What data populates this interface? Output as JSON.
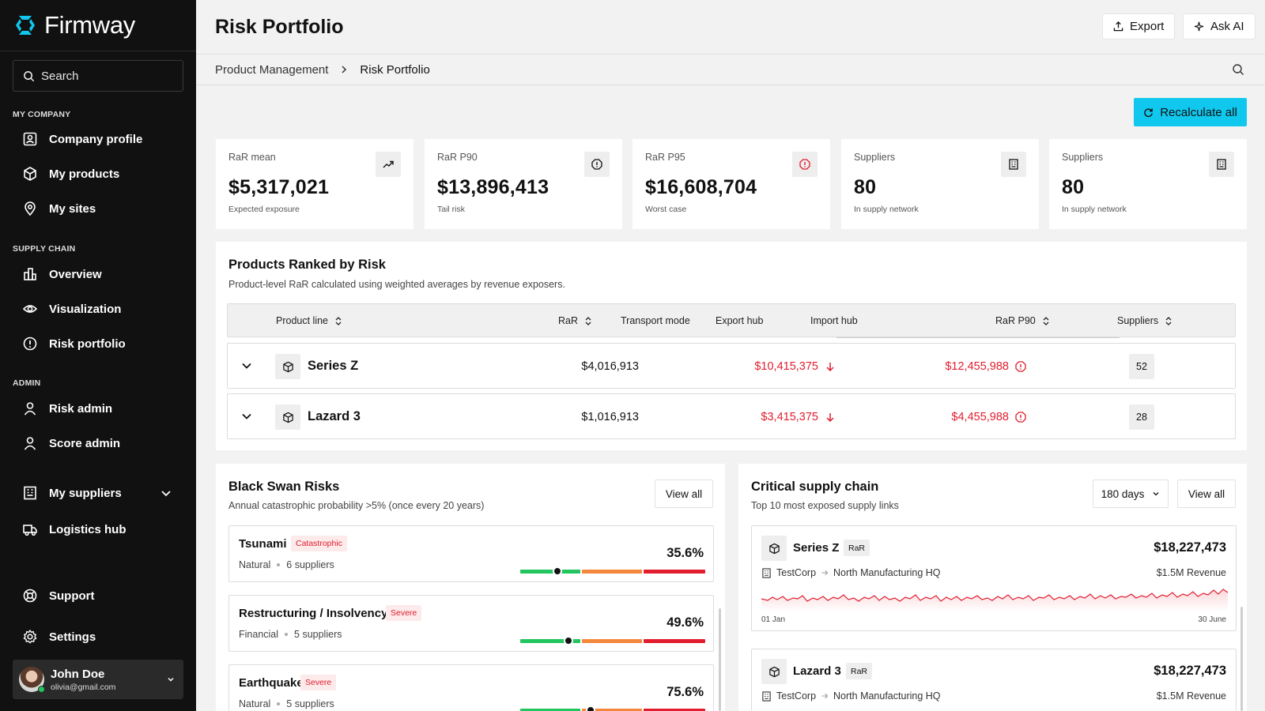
{
  "app": {
    "name": "Firmway"
  },
  "sidebar": {
    "search_placeholder": "Search",
    "sections": {
      "my_company": "MY COMPANY",
      "supply_chain": "SUPPLY CHAIN",
      "admin": "ADMIN"
    },
    "items": {
      "company_profile": "Company profile",
      "my_products": "My products",
      "my_sites": "My sites",
      "overview": "Overview",
      "visualization": "Visualization",
      "risk_portfolio": "Risk portfolio",
      "risk_admin": "Risk admin",
      "score_admin": "Score admin",
      "my_suppliers": "My suppliers",
      "logistics_hub": "Logistics hub",
      "support": "Support",
      "settings": "Settings"
    },
    "user": {
      "name": "John Doe",
      "email": "olivia@gmail.com"
    }
  },
  "header": {
    "title": "Risk Portfolio",
    "export_label": "Export",
    "ask_ai_label": "Ask AI"
  },
  "breadcrumb": {
    "parent": "Product Management",
    "current": "Risk Portfolio"
  },
  "recalculate_label": "Recalculate all",
  "kpis": [
    {
      "label": "RaR mean",
      "value": "$5,317,021",
      "sub": "Expected exposure",
      "icon": "trending-up-icon"
    },
    {
      "label": "RaR P90",
      "value": "$13,896,413",
      "sub": "Tail risk",
      "icon": "alert-octagon-icon"
    },
    {
      "label": "RaR P95",
      "value": "$16,608,704",
      "sub": "Worst case",
      "icon": "alert-octagon-red-icon"
    },
    {
      "label": "Suppliers",
      "value": "80",
      "sub": "In supply network",
      "icon": "building-icon"
    },
    {
      "label": "Suppliers",
      "value": "80",
      "sub": "In supply network",
      "icon": "building-icon"
    }
  ],
  "ranked": {
    "title": "Products Ranked by Risk",
    "subtitle": "Product-level RaR calculated using weighted averages by revenue exposers.",
    "columns": {
      "product_line": "Product line",
      "rar": "RaR",
      "transport_mode": "Transport mode",
      "export_hub": "Export hub",
      "import_hub": "Import hub",
      "rar_p90": "RaR P90",
      "suppliers": "Suppliers"
    },
    "rows": [
      {
        "name": "Series Z",
        "rar": "$4,016,913",
        "import": "$10,415,375",
        "p90": "$12,455,988",
        "suppliers": "52"
      },
      {
        "name": "Lazard 3",
        "rar": "$1,016,913",
        "import": "$3,415,375",
        "p90": "$4,455,988",
        "suppliers": "28"
      }
    ]
  },
  "black_swan": {
    "title": "Black Swan Risks",
    "subtitle": "Annual catastrophic probability >5% (once every 20 years)",
    "view_all": "View all",
    "items": [
      {
        "name": "Tsunami",
        "badge": "Catastrophic",
        "category": "Natural",
        "suppliers": "6 suppliers",
        "pct": "35.6%",
        "marker": 0.2
      },
      {
        "name": "Restructuring / Insolvency",
        "badge": "Severe",
        "category": "Financial",
        "suppliers": "5 suppliers",
        "pct": "49.6%",
        "marker": 0.26
      },
      {
        "name": "Earthquake",
        "badge": "Severe",
        "category": "Natural",
        "suppliers": "5 suppliers",
        "pct": "75.6%",
        "marker": 0.38
      }
    ]
  },
  "critical": {
    "title": "Critical supply chain",
    "subtitle": "Top 10 most exposed supply links",
    "period": "180 days",
    "view_all": "View all",
    "items": [
      {
        "name": "Series Z",
        "tag": "RaR",
        "amount": "$18,227,473",
        "from": "TestCorp",
        "to": "North Manufacturing HQ",
        "revenue": "$1.5M Revenue",
        "start": "01 Jan",
        "end": "30 June"
      },
      {
        "name": "Lazard 3",
        "tag": "RaR",
        "amount": "$18,227,473",
        "from": "TestCorp",
        "to": "North Manufacturing HQ",
        "revenue": "$1.5M Revenue"
      }
    ]
  },
  "colors": {
    "accent": "#10c8ee",
    "danger": "#e11d2e",
    "low": "#22c55e",
    "mid": "#f4873c",
    "high": "#e11d2e"
  }
}
